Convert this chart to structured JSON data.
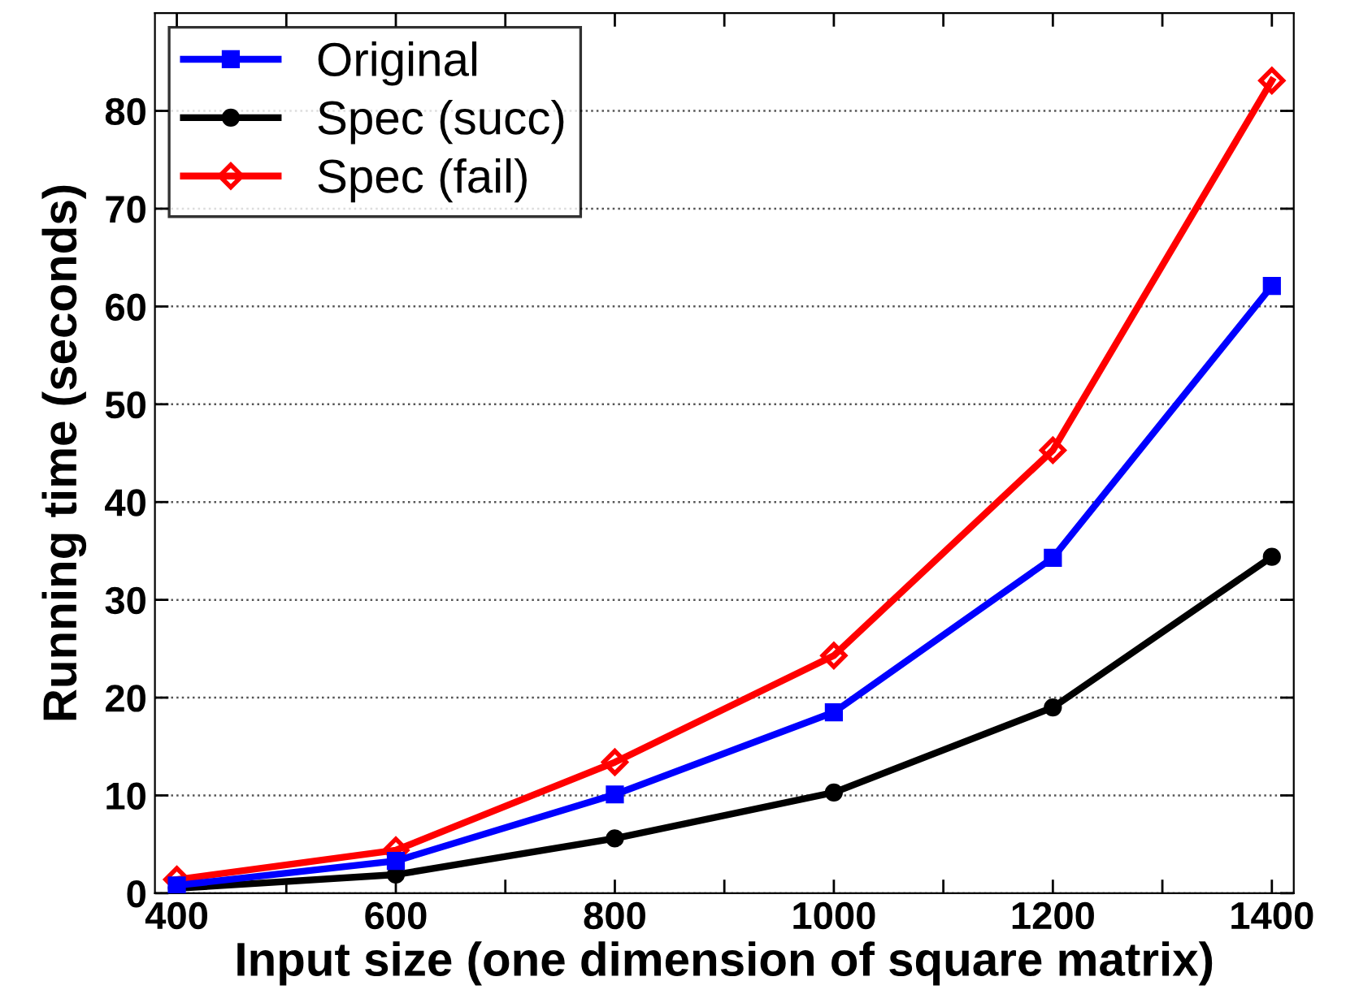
{
  "chart_data": {
    "type": "line",
    "xlabel": "Input size (one dimension of square matrix)",
    "ylabel": "Running time (seconds)",
    "x": [
      400,
      600,
      800,
      1000,
      1200,
      1400
    ],
    "series": [
      {
        "name": "Original",
        "color": "#0000ff",
        "marker": "square",
        "values": [
          0.8,
          3.3,
          10.1,
          18.5,
          34.3,
          62.1
        ]
      },
      {
        "name": "Spec (succ)",
        "color": "#000000",
        "marker": "circle",
        "values": [
          0.5,
          1.9,
          5.6,
          10.3,
          19.0,
          34.4
        ]
      },
      {
        "name": "Spec (fail)",
        "color": "#ff0000",
        "marker": "diamond",
        "values": [
          1.4,
          4.4,
          13.4,
          24.3,
          45.3,
          83.1
        ]
      }
    ],
    "xlim": [
      380,
      1420
    ],
    "xticks": [
      400,
      {
        "value": 500,
        "label": null
      },
      600,
      {
        "value": 700,
        "label": null
      },
      800,
      {
        "value": 900,
        "label": null
      },
      1000,
      {
        "value": 1100,
        "label": null
      },
      1200,
      {
        "value": 1300,
        "label": null
      },
      1400
    ],
    "ylim": [
      0,
      90
    ],
    "yticks": [
      0,
      10,
      20,
      30,
      40,
      50,
      60,
      70,
      80
    ],
    "grid": "y",
    "legend": "top left",
    "line_style": "solid"
  }
}
